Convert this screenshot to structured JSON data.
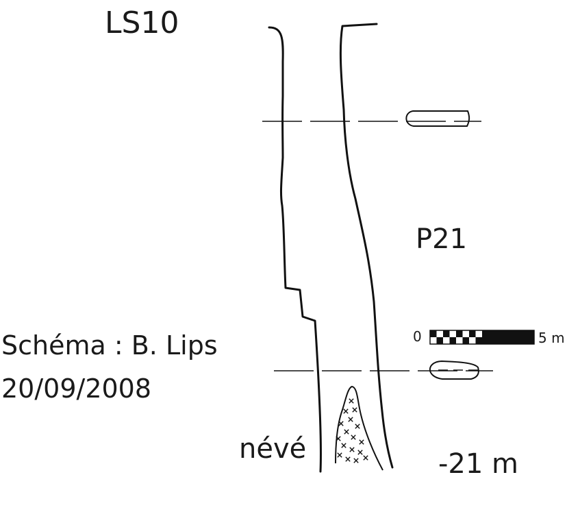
{
  "cave_name": "LS10",
  "pitch_label": "P21",
  "credit": {
    "line1": "Schéma : B. Lips",
    "line2": "20/09/2008"
  },
  "floor_label": "névé",
  "depth_label": "-21 m",
  "scale_bar": {
    "start_label": "0",
    "end_label": "5 m",
    "length_m": 5
  }
}
